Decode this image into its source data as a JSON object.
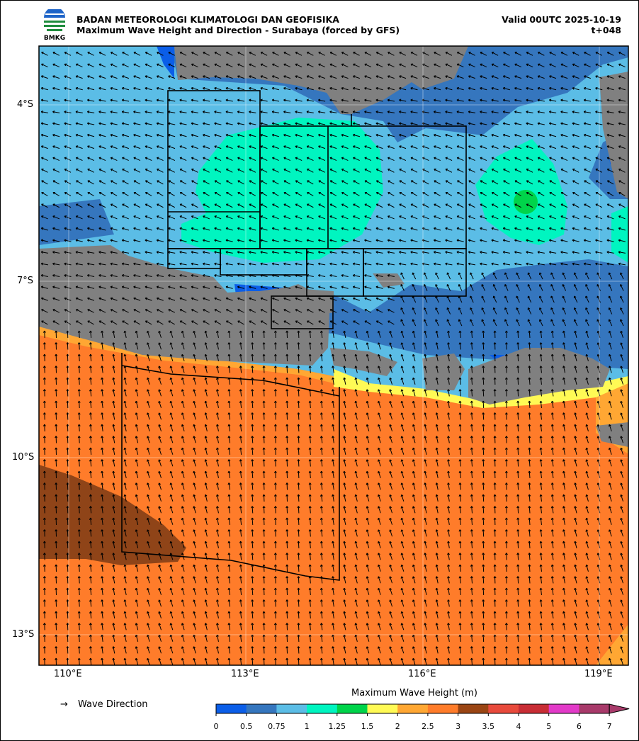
{
  "header": {
    "logo_text": "BMKG",
    "agency": "BADAN METEOROLOGI KLIMATOLOGI DAN GEOFISIKA",
    "product": "Maximum Wave Height and Direction - Surabaya (forced by GFS)",
    "valid": "Valid 00UTC 2025-10-19",
    "lead": "t+048"
  },
  "map": {
    "extent": {
      "lon": [
        109.5,
        119.5
      ],
      "lat": [
        -3.0,
        -13.5
      ]
    },
    "lon_ticks": [
      "110°E",
      "113°E",
      "116°E",
      "119°E"
    ],
    "lat_ticks": [
      "4°S",
      "7°S",
      "10°S",
      "13°S"
    ],
    "land_color": "#808080",
    "grid": true
  },
  "legend": {
    "direction_symbol": "→",
    "direction_label": "Wave Direction",
    "colorbar_title": "Maximum Wave Height (m)",
    "ticks": [
      "0",
      "0.5",
      "0.75",
      "1",
      "1.25",
      "1.5",
      "2",
      "2.5",
      "3",
      "3.5",
      "4",
      "5",
      "6",
      "7"
    ],
    "colors": [
      "#0b5ee8",
      "#3576be",
      "#5bbde6",
      "#00f5c0",
      "#00d44a",
      "#fffa55",
      "#ffa733",
      "#ff7c2a",
      "#9a4513",
      "#e84a3c",
      "#c82d35",
      "#e23ac8",
      "#a83a6a"
    ],
    "extend": "max"
  }
}
